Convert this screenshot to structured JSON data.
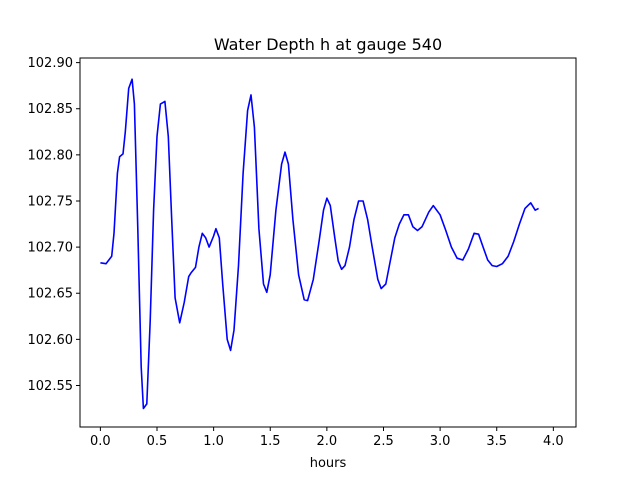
{
  "chart_data": {
    "type": "line",
    "title": "Water Depth h at gauge 540",
    "xlabel": "hours",
    "ylabel": "",
    "xlim": [
      -0.18,
      4.2
    ],
    "ylim": [
      102.505,
      102.905
    ],
    "x_ticks": [
      "0.0",
      "0.5",
      "1.0",
      "1.5",
      "2.0",
      "2.5",
      "3.0",
      "3.5",
      "4.0"
    ],
    "y_ticks": [
      "102.55",
      "102.60",
      "102.65",
      "102.70",
      "102.75",
      "102.80",
      "102.85",
      "102.90"
    ],
    "grid": false,
    "series": [
      {
        "color": "#0000ff",
        "points": [
          [
            0.0,
            102.683
          ],
          [
            0.05,
            102.682
          ],
          [
            0.1,
            102.69
          ],
          [
            0.12,
            102.715
          ],
          [
            0.15,
            102.78
          ],
          [
            0.17,
            102.798
          ],
          [
            0.2,
            102.801
          ],
          [
            0.22,
            102.825
          ],
          [
            0.25,
            102.872
          ],
          [
            0.28,
            102.882
          ],
          [
            0.3,
            102.855
          ],
          [
            0.33,
            102.72
          ],
          [
            0.36,
            102.57
          ],
          [
            0.38,
            102.525
          ],
          [
            0.41,
            102.53
          ],
          [
            0.44,
            102.62
          ],
          [
            0.47,
            102.74
          ],
          [
            0.5,
            102.82
          ],
          [
            0.53,
            102.855
          ],
          [
            0.57,
            102.858
          ],
          [
            0.6,
            102.82
          ],
          [
            0.63,
            102.73
          ],
          [
            0.66,
            102.645
          ],
          [
            0.7,
            102.618
          ],
          [
            0.74,
            102.64
          ],
          [
            0.78,
            102.668
          ],
          [
            0.8,
            102.672
          ],
          [
            0.84,
            102.678
          ],
          [
            0.87,
            102.7
          ],
          [
            0.9,
            102.715
          ],
          [
            0.93,
            102.71
          ],
          [
            0.96,
            102.7
          ],
          [
            1.0,
            102.712
          ],
          [
            1.02,
            102.72
          ],
          [
            1.05,
            102.71
          ],
          [
            1.08,
            102.66
          ],
          [
            1.12,
            102.6
          ],
          [
            1.15,
            102.588
          ],
          [
            1.18,
            102.61
          ],
          [
            1.22,
            102.68
          ],
          [
            1.26,
            102.78
          ],
          [
            1.3,
            102.848
          ],
          [
            1.33,
            102.865
          ],
          [
            1.36,
            102.83
          ],
          [
            1.4,
            102.72
          ],
          [
            1.44,
            102.66
          ],
          [
            1.47,
            102.651
          ],
          [
            1.5,
            102.67
          ],
          [
            1.55,
            102.74
          ],
          [
            1.6,
            102.79
          ],
          [
            1.63,
            102.803
          ],
          [
            1.66,
            102.79
          ],
          [
            1.7,
            102.73
          ],
          [
            1.75,
            102.67
          ],
          [
            1.8,
            102.643
          ],
          [
            1.83,
            102.642
          ],
          [
            1.88,
            102.665
          ],
          [
            1.93,
            102.705
          ],
          [
            1.97,
            102.74
          ],
          [
            2.0,
            102.753
          ],
          [
            2.03,
            102.745
          ],
          [
            2.07,
            102.71
          ],
          [
            2.1,
            102.685
          ],
          [
            2.13,
            102.676
          ],
          [
            2.16,
            102.68
          ],
          [
            2.2,
            102.7
          ],
          [
            2.24,
            102.73
          ],
          [
            2.28,
            102.75
          ],
          [
            2.32,
            102.75
          ],
          [
            2.36,
            102.73
          ],
          [
            2.4,
            102.7
          ],
          [
            2.45,
            102.665
          ],
          [
            2.48,
            102.655
          ],
          [
            2.52,
            102.66
          ],
          [
            2.56,
            102.685
          ],
          [
            2.6,
            102.71
          ],
          [
            2.64,
            102.725
          ],
          [
            2.68,
            102.735
          ],
          [
            2.72,
            102.735
          ],
          [
            2.76,
            102.722
          ],
          [
            2.8,
            102.718
          ],
          [
            2.84,
            102.722
          ],
          [
            2.9,
            102.738
          ],
          [
            2.94,
            102.745
          ],
          [
            3.0,
            102.735
          ],
          [
            3.05,
            102.718
          ],
          [
            3.1,
            102.7
          ],
          [
            3.15,
            102.688
          ],
          [
            3.2,
            102.686
          ],
          [
            3.25,
            102.698
          ],
          [
            3.3,
            102.715
          ],
          [
            3.34,
            102.714
          ],
          [
            3.38,
            102.7
          ],
          [
            3.42,
            102.686
          ],
          [
            3.46,
            102.68
          ],
          [
            3.5,
            102.679
          ],
          [
            3.55,
            102.682
          ],
          [
            3.6,
            102.69
          ],
          [
            3.65,
            102.706
          ],
          [
            3.7,
            102.725
          ],
          [
            3.75,
            102.742
          ],
          [
            3.8,
            102.748
          ],
          [
            3.84,
            102.74
          ],
          [
            3.87,
            102.742
          ]
        ]
      }
    ]
  }
}
